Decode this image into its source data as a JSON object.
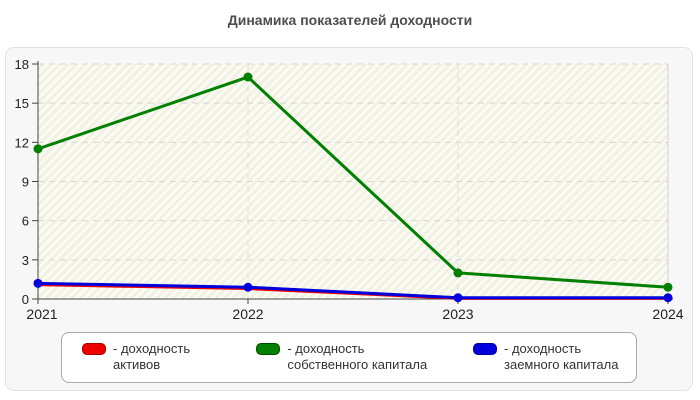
{
  "title": "Динамика показателей доходности",
  "chart_data": {
    "type": "line",
    "categories": [
      "2021",
      "2022",
      "2023",
      "2024"
    ],
    "series": [
      {
        "name": "доходность активов",
        "color": "#ee0000",
        "swatch_border": "#a80000",
        "values": [
          1.1,
          0.8,
          0.05,
          0.05
        ]
      },
      {
        "name": "доходность собственного капитала",
        "color": "#008000",
        "swatch_border": "#004d00",
        "values": [
          11.5,
          17,
          2,
          0.9
        ]
      },
      {
        "name": "доходность заемного капитала",
        "color": "#0000dd",
        "swatch_border": "#000099",
        "values": [
          1.2,
          0.9,
          0.1,
          0.1
        ]
      }
    ],
    "ylim": [
      0,
      18
    ],
    "yticks": [
      0,
      3,
      6,
      9,
      12,
      15,
      18
    ],
    "grid": "dashed",
    "legend_position": "bottom",
    "legend_separator": "-"
  }
}
